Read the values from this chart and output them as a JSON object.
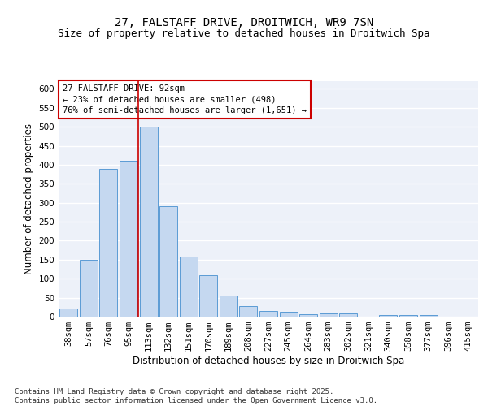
{
  "title_line1": "27, FALSTAFF DRIVE, DROITWICH, WR9 7SN",
  "title_line2": "Size of property relative to detached houses in Droitwich Spa",
  "xlabel": "Distribution of detached houses by size in Droitwich Spa",
  "ylabel": "Number of detached properties",
  "categories": [
    "38sqm",
    "57sqm",
    "76sqm",
    "95sqm",
    "113sqm",
    "132sqm",
    "151sqm",
    "170sqm",
    "189sqm",
    "208sqm",
    "227sqm",
    "245sqm",
    "264sqm",
    "283sqm",
    "302sqm",
    "321sqm",
    "340sqm",
    "358sqm",
    "377sqm",
    "396sqm",
    "415sqm"
  ],
  "values": [
    22,
    150,
    390,
    410,
    500,
    290,
    158,
    110,
    55,
    28,
    16,
    13,
    6,
    9,
    9,
    0,
    4,
    5,
    4,
    0,
    0
  ],
  "bar_color": "#c5d8f0",
  "bar_edge_color": "#5b9bd5",
  "vline_x": 3.5,
  "vline_color": "#cc0000",
  "annotation_text": "27 FALSTAFF DRIVE: 92sqm\n← 23% of detached houses are smaller (498)\n76% of semi-detached houses are larger (1,651) →",
  "annotation_box_color": "#ffffff",
  "annotation_box_edge": "#cc0000",
  "ylim": [
    0,
    620
  ],
  "yticks": [
    0,
    50,
    100,
    150,
    200,
    250,
    300,
    350,
    400,
    450,
    500,
    550,
    600
  ],
  "bg_color": "#edf1f9",
  "footer_text": "Contains HM Land Registry data © Crown copyright and database right 2025.\nContains public sector information licensed under the Open Government Licence v3.0.",
  "title_fontsize": 10,
  "subtitle_fontsize": 9,
  "axis_label_fontsize": 8.5,
  "tick_fontsize": 7.5,
  "annotation_fontsize": 7.5,
  "footer_fontsize": 6.5
}
